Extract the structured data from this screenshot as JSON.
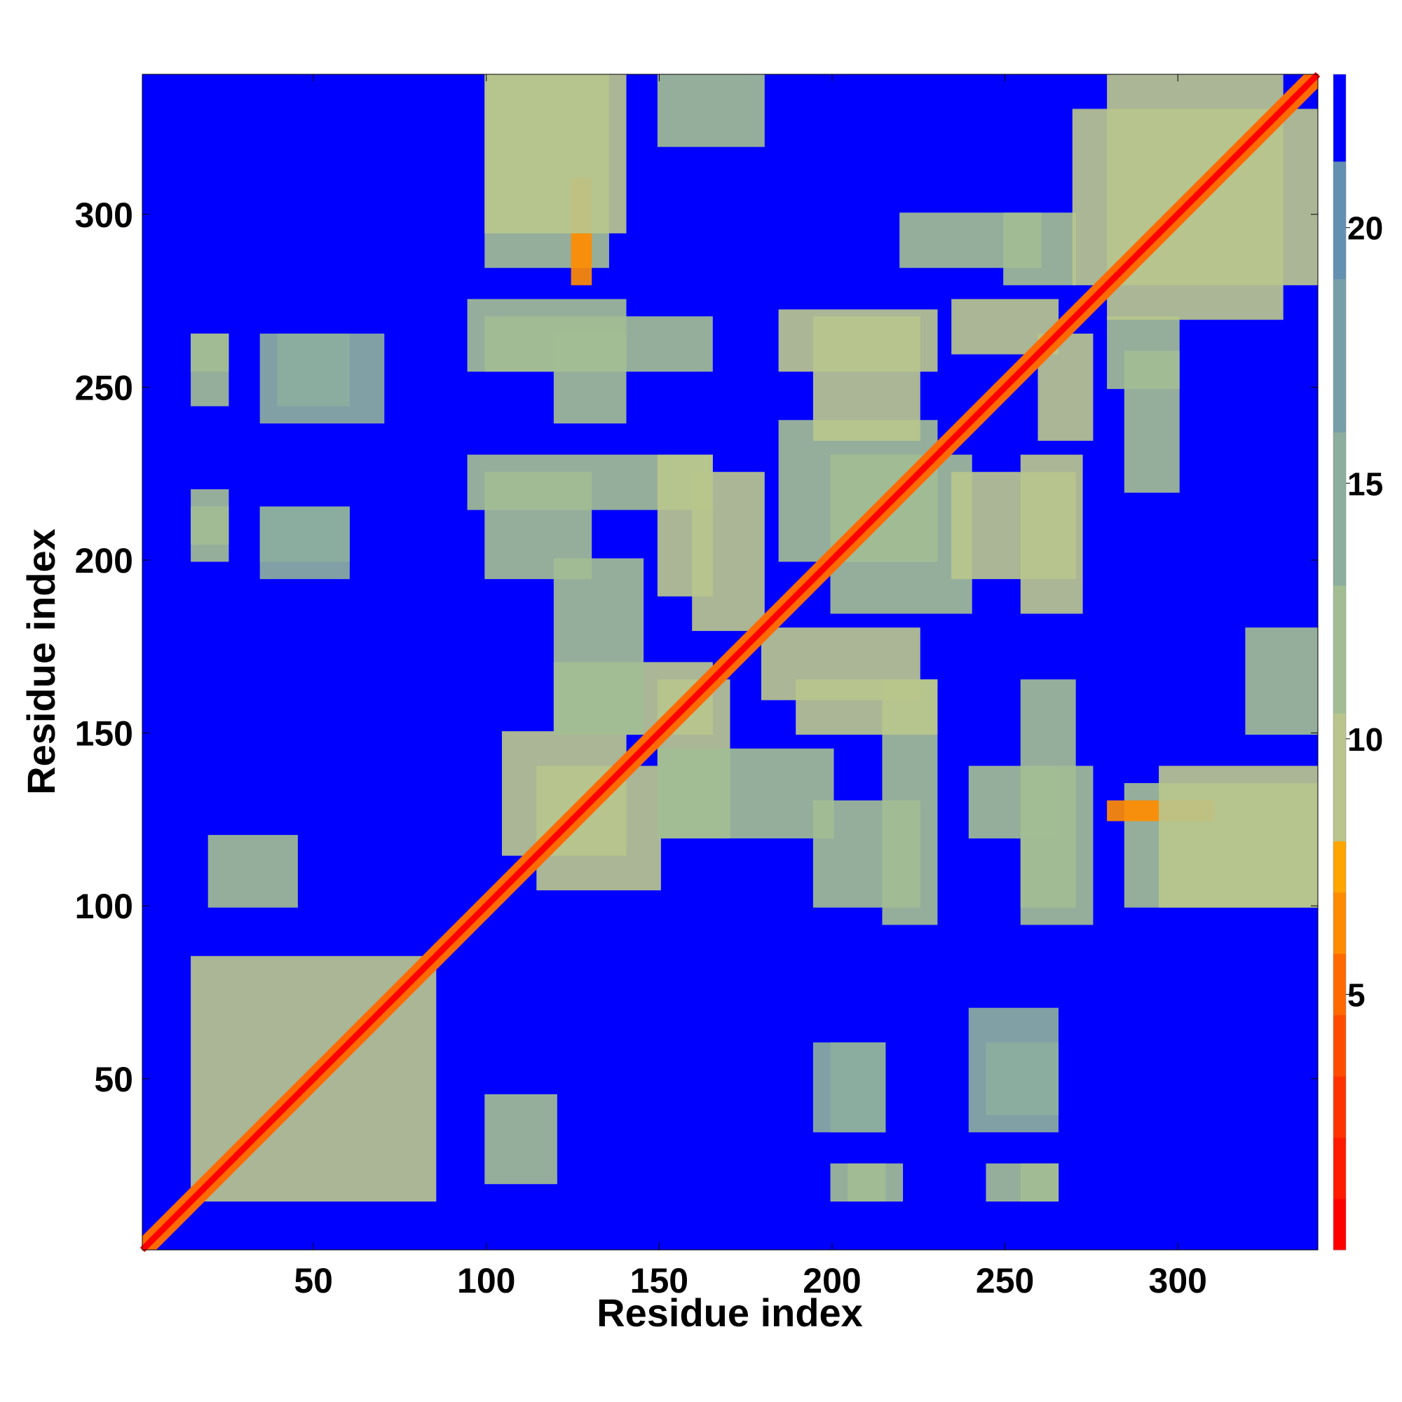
{
  "chart_data": {
    "type": "heatmap",
    "title": "",
    "xlabel": "Residue index",
    "ylabel": "Residue index",
    "xlim": [
      0.5,
      340.5
    ],
    "ylim": [
      0.5,
      340.5
    ],
    "n_residues": 340,
    "x_ticks": [
      50,
      100,
      150,
      200,
      250,
      300
    ],
    "y_ticks": [
      50,
      100,
      150,
      200,
      250,
      300
    ],
    "colorbar": {
      "ticks": [
        5,
        10,
        15,
        20
      ],
      "range": [
        0,
        23
      ],
      "bins": [
        {
          "from": 0.0,
          "to": 1.0,
          "color": "#ff0000"
        },
        {
          "from": 1.0,
          "to": 2.2,
          "color": "#ff1a00"
        },
        {
          "from": 2.2,
          "to": 3.4,
          "color": "#ff3300"
        },
        {
          "from": 3.4,
          "to": 4.6,
          "color": "#ff4d00"
        },
        {
          "from": 4.6,
          "to": 5.8,
          "color": "#ff6a00"
        },
        {
          "from": 5.8,
          "to": 7.0,
          "color": "#ff8c00"
        },
        {
          "from": 7.0,
          "to": 8.0,
          "color": "#ffa500"
        },
        {
          "from": 8.0,
          "to": 10.5,
          "color": "#b9c58c"
        },
        {
          "from": 10.5,
          "to": 13.0,
          "color": "#a2bd94"
        },
        {
          "from": 13.0,
          "to": 16.0,
          "color": "#8cae9e"
        },
        {
          "from": 16.0,
          "to": 19.0,
          "color": "#779fa8"
        },
        {
          "from": 19.0,
          "to": 21.3,
          "color": "#6290b2"
        },
        {
          "from": 21.3,
          "to": 23.0,
          "color": "#0000ff"
        }
      ]
    },
    "background_color": "#0000ff",
    "contact_threshold": 21.3,
    "diagonal": {
      "start": 1,
      "end": 340,
      "value_on_diagonal": 0.5
    },
    "contact_regions": [
      {
        "i": [
          15,
          85
        ],
        "j": [
          15,
          85
        ],
        "value": 9
      },
      {
        "i": [
          100,
          120
        ],
        "j": [
          20,
          45
        ],
        "value": 11
      },
      {
        "i": [
          105,
          140
        ],
        "j": [
          115,
          150
        ],
        "value": 9
      },
      {
        "i": [
          120,
          165
        ],
        "j": [
          150,
          170
        ],
        "value": 10
      },
      {
        "i": [
          95,
          165
        ],
        "j": [
          215,
          230
        ],
        "value": 11
      },
      {
        "i": [
          95,
          140
        ],
        "j": [
          255,
          275
        ],
        "value": 11
      },
      {
        "i": [
          100,
          135
        ],
        "j": [
          285,
          340
        ],
        "value": 11
      },
      {
        "i": [
          125,
          130
        ],
        "j": [
          280,
          310
        ],
        "value": 6
      },
      {
        "i": [
          15,
          25
        ],
        "j": [
          205,
          220
        ],
        "value": 12
      },
      {
        "i": [
          15,
          25
        ],
        "j": [
          255,
          265
        ],
        "value": 12
      },
      {
        "i": [
          35,
          60
        ],
        "j": [
          195,
          215
        ],
        "value": 13
      },
      {
        "i": [
          40,
          60
        ],
        "j": [
          245,
          265
        ],
        "value": 13
      },
      {
        "i": [
          150,
          200
        ],
        "j": [
          120,
          145
        ],
        "value": 11
      },
      {
        "i": [
          160,
          180
        ],
        "j": [
          180,
          225
        ],
        "value": 10
      },
      {
        "i": [
          185,
          230
        ],
        "j": [
          255,
          272
        ],
        "value": 10
      },
      {
        "i": [
          190,
          230
        ],
        "j": [
          150,
          165
        ],
        "value": 10
      },
      {
        "i": [
          195,
          225
        ],
        "j": [
          100,
          130
        ],
        "value": 11
      },
      {
        "i": [
          200,
          240
        ],
        "j": [
          185,
          230
        ],
        "value": 11
      },
      {
        "i": [
          235,
          270
        ],
        "j": [
          195,
          225
        ],
        "value": 10
      },
      {
        "i": [
          240,
          265
        ],
        "j": [
          120,
          140
        ],
        "value": 11
      },
      {
        "i": [
          255,
          270
        ],
        "j": [
          100,
          165
        ],
        "value": 11
      },
      {
        "i": [
          260,
          275
        ],
        "j": [
          235,
          265
        ],
        "value": 10
      },
      {
        "i": [
          250,
          270
        ],
        "j": [
          280,
          300
        ],
        "value": 11
      },
      {
        "i": [
          280,
          330
        ],
        "j": [
          270,
          340
        ],
        "value": 9
      },
      {
        "i": [
          285,
          300
        ],
        "j": [
          220,
          260
        ],
        "value": 11
      },
      {
        "i": [
          295,
          340
        ],
        "j": [
          100,
          140
        ],
        "value": 10
      },
      {
        "i": [
          320,
          340
        ],
        "j": [
          150,
          180
        ],
        "value": 12
      },
      {
        "i": [
          200,
          215
        ],
        "j": [
          15,
          25
        ],
        "value": 12
      },
      {
        "i": [
          200,
          215
        ],
        "j": [
          35,
          60
        ],
        "value": 13
      },
      {
        "i": [
          245,
          265
        ],
        "j": [
          15,
          25
        ],
        "value": 12
      },
      {
        "i": [
          240,
          265
        ],
        "j": [
          35,
          70
        ],
        "value": 13
      }
    ]
  }
}
